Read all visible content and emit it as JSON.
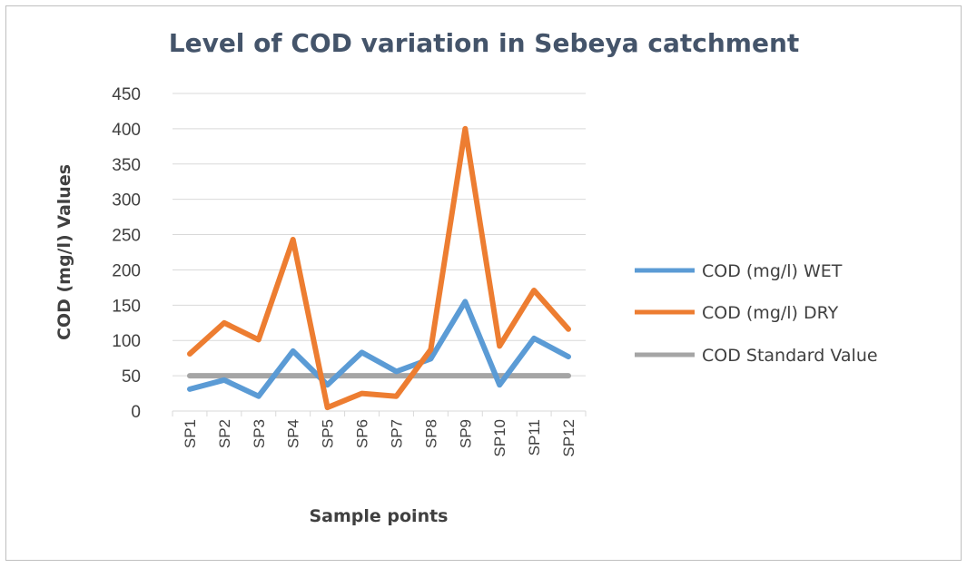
{
  "chart_data": {
    "type": "line",
    "title": "Level of COD variation in Sebeya catchment",
    "xlabel": "Sample points",
    "ylabel": "COD (mg/l) Values",
    "categories": [
      "SP1",
      "SP2",
      "SP3",
      "SP4",
      "SP5",
      "SP6",
      "SP7",
      "SP8",
      "SP9",
      "SP10",
      "SP11",
      "SP12"
    ],
    "ylim": [
      0,
      450
    ],
    "yticks": [
      0,
      50,
      100,
      150,
      200,
      250,
      300,
      350,
      400,
      450
    ],
    "grid": true,
    "legend_position": "right",
    "series": [
      {
        "name": "COD (mg/l) WET",
        "color": "#5b9bd5",
        "values": [
          31,
          44,
          21,
          85,
          37,
          83,
          56,
          74,
          155,
          37,
          103,
          77
        ]
      },
      {
        "name": "COD (mg/l) DRY",
        "color": "#ed7d31",
        "values": [
          81,
          125,
          101,
          243,
          5,
          25,
          21,
          87,
          400,
          92,
          171,
          116
        ]
      },
      {
        "name": "COD Standard Value",
        "color": "#a5a5a5",
        "values": [
          50,
          50,
          50,
          50,
          50,
          50,
          50,
          50,
          50,
          50,
          50,
          50
        ]
      }
    ]
  }
}
